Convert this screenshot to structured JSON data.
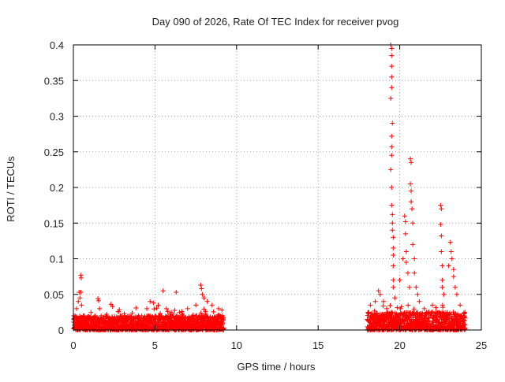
{
  "chart_data": {
    "type": "scatter",
    "title": "Day 090 of 2026, Rate Of TEC Index for receiver pvog",
    "xlabel": "GPS time / hours",
    "ylabel": "ROTI / TECUs",
    "xlim": [
      0,
      25
    ],
    "ylim": [
      0,
      0.4
    ],
    "xticks": [
      0,
      5,
      10,
      15,
      20,
      25
    ],
    "yticks": [
      0,
      0.05,
      0.1,
      0.15,
      0.2,
      0.25,
      0.3,
      0.35,
      0.4
    ],
    "xtick_labels": [
      "0",
      "5",
      "10",
      "15",
      "20",
      "25"
    ],
    "ytick_labels": [
      "0",
      "0.05",
      "0.1",
      "0.15",
      "0.2",
      "0.25",
      "0.3",
      "0.35",
      "0.4"
    ],
    "grid": true,
    "marker": "+",
    "color": "#ff0000",
    "series": [
      {
        "name": "ROTI",
        "points": [
          [
            0.1,
            0.02
          ],
          [
            0.2,
            0.03
          ],
          [
            0.3,
            0.04
          ],
          [
            0.35,
            0.053
          ],
          [
            0.45,
            0.053
          ],
          [
            0.45,
            0.077
          ],
          [
            0.48,
            0.073
          ],
          [
            0.4,
            0.045
          ],
          [
            0.5,
            0.035
          ],
          [
            0.6,
            0.02
          ],
          [
            1.0,
            0.015
          ],
          [
            1.5,
            0.044
          ],
          [
            1.55,
            0.041
          ],
          [
            1.6,
            0.03
          ],
          [
            1.7,
            0.02
          ],
          [
            2.3,
            0.036
          ],
          [
            2.4,
            0.033
          ],
          [
            3.0,
            0.02
          ],
          [
            3.5,
            0.018
          ],
          [
            4.0,
            0.02
          ],
          [
            4.5,
            0.03
          ],
          [
            4.7,
            0.04
          ],
          [
            4.9,
            0.038
          ],
          [
            5.2,
            0.035
          ],
          [
            5.5,
            0.055
          ],
          [
            5.7,
            0.03
          ],
          [
            6.0,
            0.025
          ],
          [
            6.3,
            0.053
          ],
          [
            6.5,
            0.025
          ],
          [
            7.0,
            0.03
          ],
          [
            7.5,
            0.035
          ],
          [
            7.8,
            0.063
          ],
          [
            7.85,
            0.058
          ],
          [
            7.9,
            0.05
          ],
          [
            8.0,
            0.045
          ],
          [
            8.2,
            0.04
          ],
          [
            8.5,
            0.035
          ],
          [
            8.9,
            0.03
          ],
          [
            9.1,
            0.028
          ],
          [
            18.2,
            0.035
          ],
          [
            18.5,
            0.04
          ],
          [
            18.7,
            0.055
          ],
          [
            18.8,
            0.05
          ],
          [
            19.0,
            0.04
          ],
          [
            19.2,
            0.03
          ],
          [
            19.45,
            0.4
          ],
          [
            19.5,
            0.395
          ],
          [
            19.5,
            0.385
          ],
          [
            19.5,
            0.37
          ],
          [
            19.5,
            0.355
          ],
          [
            19.5,
            0.34
          ],
          [
            19.45,
            0.325
          ],
          [
            19.55,
            0.29
          ],
          [
            19.5,
            0.272
          ],
          [
            19.5,
            0.257
          ],
          [
            19.5,
            0.245
          ],
          [
            19.45,
            0.225
          ],
          [
            19.5,
            0.2
          ],
          [
            19.5,
            0.175
          ],
          [
            19.55,
            0.162
          ],
          [
            19.55,
            0.15
          ],
          [
            19.55,
            0.14
          ],
          [
            19.6,
            0.13
          ],
          [
            19.6,
            0.115
          ],
          [
            19.6,
            0.105
          ],
          [
            19.6,
            0.09
          ],
          [
            19.6,
            0.07
          ],
          [
            19.6,
            0.06
          ],
          [
            19.7,
            0.045
          ],
          [
            20.0,
            0.07
          ],
          [
            20.2,
            0.1
          ],
          [
            20.3,
            0.16
          ],
          [
            20.35,
            0.152
          ],
          [
            20.35,
            0.135
          ],
          [
            20.4,
            0.11
          ],
          [
            20.4,
            0.095
          ],
          [
            20.5,
            0.08
          ],
          [
            20.6,
            0.06
          ],
          [
            20.65,
            0.24
          ],
          [
            20.7,
            0.235
          ],
          [
            20.65,
            0.205
          ],
          [
            20.7,
            0.195
          ],
          [
            20.7,
            0.18
          ],
          [
            20.75,
            0.17
          ],
          [
            20.8,
            0.15
          ],
          [
            20.8,
            0.12
          ],
          [
            20.9,
            0.1
          ],
          [
            20.9,
            0.08
          ],
          [
            21.0,
            0.06
          ],
          [
            21.1,
            0.05
          ],
          [
            21.2,
            0.04
          ],
          [
            21.5,
            0.03
          ],
          [
            22.0,
            0.035
          ],
          [
            22.5,
            0.175
          ],
          [
            22.55,
            0.17
          ],
          [
            22.5,
            0.148
          ],
          [
            22.55,
            0.132
          ],
          [
            22.55,
            0.11
          ],
          [
            22.6,
            0.09
          ],
          [
            22.6,
            0.07
          ],
          [
            22.6,
            0.06
          ],
          [
            22.7,
            0.05
          ],
          [
            23.0,
            0.09
          ],
          [
            23.1,
            0.123
          ],
          [
            23.15,
            0.11
          ],
          [
            23.2,
            0.1
          ],
          [
            23.3,
            0.085
          ],
          [
            23.3,
            0.075
          ],
          [
            23.4,
            0.06
          ],
          [
            23.5,
            0.05
          ],
          [
            23.7,
            0.035
          ],
          [
            24.0,
            0.025
          ]
        ],
        "baseline_bands": [
          {
            "x_start": 0.0,
            "x_end": 9.2,
            "y_min": 0.0,
            "y_max": 0.02
          },
          {
            "x_start": 18.0,
            "x_end": 24.0,
            "y_min": 0.0,
            "y_max": 0.025
          }
        ]
      }
    ]
  }
}
